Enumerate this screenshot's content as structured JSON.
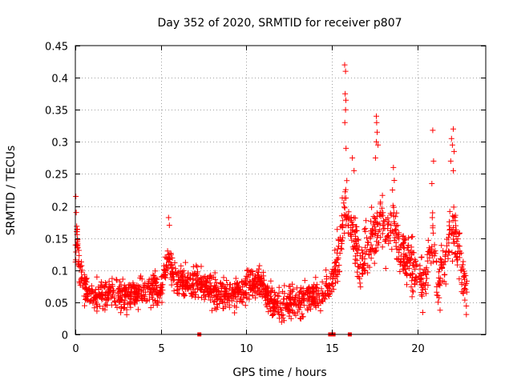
{
  "chart_data": {
    "type": "scatter",
    "title": "Day 352 of 2020, SRMTID for receiver p807",
    "xlabel": "GPS time / hours",
    "ylabel": "SRMTID / TECUs",
    "xlim": [
      0,
      24
    ],
    "ylim": [
      0,
      0.45
    ],
    "x_ticks": [
      0,
      5,
      10,
      15,
      20
    ],
    "x_tick_labels": [
      "0",
      "5",
      "10",
      "15",
      "20"
    ],
    "y_ticks": [
      0,
      0.05,
      0.1,
      0.15,
      0.2,
      0.25,
      0.3,
      0.35,
      0.4,
      0.45
    ],
    "y_tick_labels": [
      "0",
      "0.05",
      "0.1",
      "0.15",
      "0.2",
      "0.25",
      "0.3",
      "0.35",
      "0.4",
      "0.45"
    ],
    "grid": true,
    "marker": "+",
    "series_color": "#ff0000",
    "envelope": {
      "x": [
        0,
        0.1,
        0.2,
        0.5,
        1,
        2,
        3,
        4,
        5,
        5.4,
        5.8,
        6.5,
        7,
        8,
        9,
        10,
        10.5,
        11,
        11.5,
        12,
        13,
        14,
        14.5,
        15,
        15.3,
        15.6,
        15.8,
        16,
        16.3,
        16.6,
        17,
        17.5,
        17.8,
        18.2,
        18.6,
        19,
        19.5,
        20,
        20.3,
        20.6,
        20.9,
        21.2,
        21.6,
        22,
        22.3,
        22.6,
        22.9
      ],
      "y": [
        0.13,
        0.15,
        0.11,
        0.07,
        0.06,
        0.065,
        0.06,
        0.065,
        0.07,
        0.12,
        0.085,
        0.08,
        0.085,
        0.065,
        0.06,
        0.075,
        0.08,
        0.075,
        0.05,
        0.045,
        0.055,
        0.06,
        0.065,
        0.085,
        0.11,
        0.165,
        0.2,
        0.17,
        0.15,
        0.11,
        0.13,
        0.15,
        0.18,
        0.15,
        0.17,
        0.13,
        0.11,
        0.11,
        0.08,
        0.1,
        0.15,
        0.08,
        0.1,
        0.17,
        0.14,
        0.1,
        0.07
      ]
    },
    "spread": [
      {
        "x": [
          0,
          15.3
        ],
        "value": 0.025
      },
      {
        "x": [
          15.3,
          23
        ],
        "value": 0.045
      }
    ],
    "spikes": [
      {
        "x": 0.03,
        "y": 0.215
      },
      {
        "x": 0.05,
        "y": 0.19
      },
      {
        "x": 0.1,
        "y": 0.16
      },
      {
        "x": 5.45,
        "y": 0.182
      },
      {
        "x": 5.5,
        "y": 0.17
      },
      {
        "x": 15.75,
        "y": 0.42
      },
      {
        "x": 15.8,
        "y": 0.41
      },
      {
        "x": 15.78,
        "y": 0.375
      },
      {
        "x": 15.82,
        "y": 0.365
      },
      {
        "x": 15.8,
        "y": 0.35
      },
      {
        "x": 15.76,
        "y": 0.33
      },
      {
        "x": 15.83,
        "y": 0.29
      },
      {
        "x": 16.2,
        "y": 0.275
      },
      {
        "x": 16.3,
        "y": 0.255
      },
      {
        "x": 17.6,
        "y": 0.34
      },
      {
        "x": 17.62,
        "y": 0.33
      },
      {
        "x": 17.65,
        "y": 0.315
      },
      {
        "x": 17.6,
        "y": 0.3
      },
      {
        "x": 17.7,
        "y": 0.295
      },
      {
        "x": 17.55,
        "y": 0.275
      },
      {
        "x": 18.6,
        "y": 0.26
      },
      {
        "x": 18.65,
        "y": 0.24
      },
      {
        "x": 18.55,
        "y": 0.225
      },
      {
        "x": 20.9,
        "y": 0.318
      },
      {
        "x": 20.95,
        "y": 0.27
      },
      {
        "x": 20.85,
        "y": 0.235
      },
      {
        "x": 22.1,
        "y": 0.32
      },
      {
        "x": 22.0,
        "y": 0.305
      },
      {
        "x": 22.05,
        "y": 0.295
      },
      {
        "x": 22.15,
        "y": 0.285
      },
      {
        "x": 21.95,
        "y": 0.27
      },
      {
        "x": 22.1,
        "y": 0.255
      }
    ],
    "zero_markers": [
      {
        "x": 7.25,
        "y": 0
      },
      {
        "x": 14.9,
        "y": 0
      },
      {
        "x": 15.1,
        "y": 0
      },
      {
        "x": 16.05,
        "y": 0
      }
    ],
    "point_count": 1800,
    "random_seed": 352
  }
}
